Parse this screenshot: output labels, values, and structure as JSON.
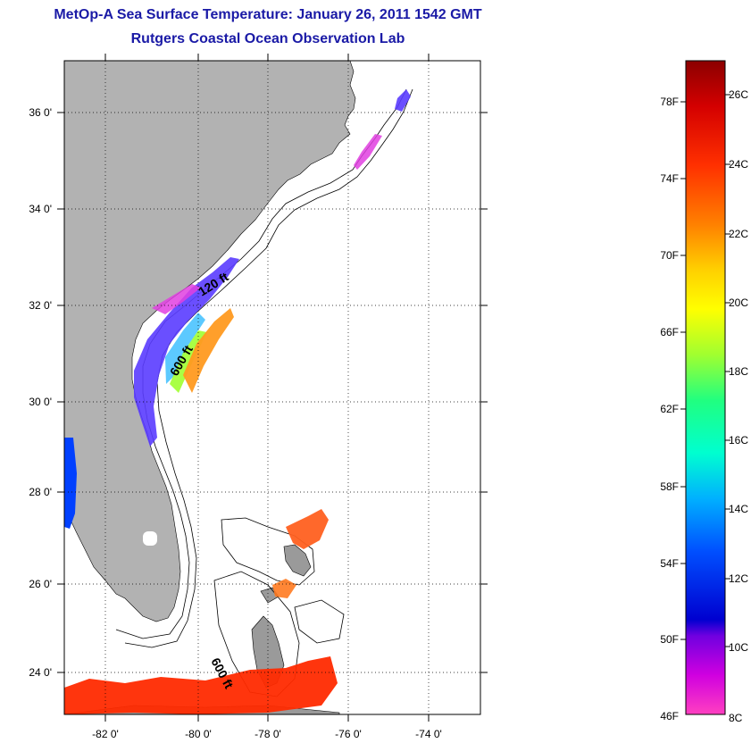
{
  "title": "MetOp-A Sea Surface Temperature:  January 26, 2011 1542 GMT",
  "subtitle": "Rutgers Coastal Ocean Observation Lab",
  "lat_labels": [
    "36 0'",
    "34 0'",
    "32 0'",
    "30 0'",
    "28 0'",
    "26 0'",
    "24 0'"
  ],
  "lon_labels": [
    "-82 0'",
    "-80 0'",
    "-78 0'",
    "-76 0'",
    "-74 0'"
  ],
  "isobath_labels": [
    "120 ft",
    "600 ft",
    "600 ft"
  ],
  "colorbar": {
    "f_labels": [
      "78F",
      "74F",
      "70F",
      "66F",
      "62F",
      "58F",
      "54F",
      "50F",
      "46F"
    ],
    "c_labels": [
      "26C",
      "24C",
      "22C",
      "20C",
      "18C",
      "16C",
      "14C",
      "12C",
      "10C",
      "8C"
    ],
    "colors": [
      "#8b0000",
      "#d40000",
      "#ff3000",
      "#ff8000",
      "#ffd000",
      "#ffff00",
      "#a0ff30",
      "#20ff80",
      "#00ffd0",
      "#00b0ff",
      "#0050ff",
      "#0000d0",
      "#7000e0",
      "#d000e0",
      "#ff40c0"
    ]
  },
  "colors": {
    "land": "#b2b2b2",
    "title": "#1a1aa6"
  }
}
